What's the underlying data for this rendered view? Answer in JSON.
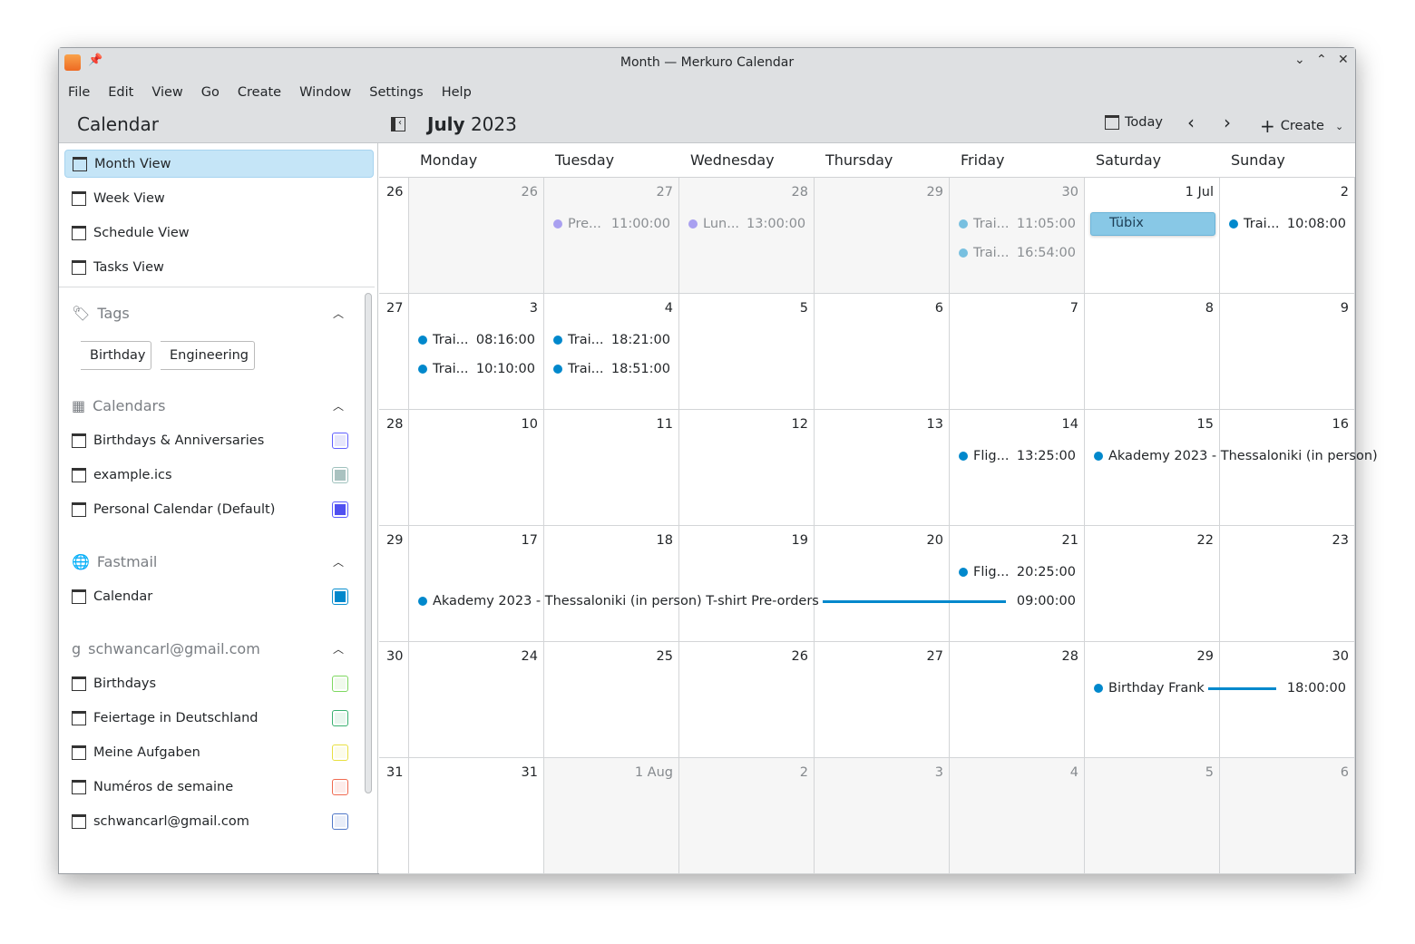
{
  "window": {
    "title": "Month — Merkuro Calendar"
  },
  "menu": [
    "File",
    "Edit",
    "View",
    "Go",
    "Create",
    "Window",
    "Settings",
    "Help"
  ],
  "header": {
    "sidebar_title": "Calendar",
    "month": "July",
    "year": "2023",
    "today": "Today",
    "create": "Create"
  },
  "nav": [
    {
      "label": "Month View",
      "selected": true
    },
    {
      "label": "Week View"
    },
    {
      "label": "Schedule View"
    },
    {
      "label": "Tasks View"
    }
  ],
  "tags": {
    "title": "Tags",
    "items": [
      "Birthday",
      "Engineering"
    ]
  },
  "sources": [
    {
      "title": "Calendars",
      "icon": "calendar-icon",
      "items": [
        {
          "label": "Birthdays & Anniversaries",
          "color": "#6060ff",
          "fill": "#e6e6fb",
          "icon": "cake-icon"
        },
        {
          "label": "example.ics",
          "color": "#9fc1bd",
          "fill": "#a9c2c0",
          "icon": "calendar-file-icon"
        },
        {
          "label": "Personal Calendar (Default)",
          "color": "#5a5aff",
          "fill": "#5050f0",
          "icon": "calendar-file-icon"
        }
      ]
    },
    {
      "title": "Fastmail",
      "icon": "globe-icon",
      "items": [
        {
          "label": "Calendar",
          "color": "#0a8fd0",
          "fill": "#0088cc",
          "icon": "folder-icon"
        }
      ]
    },
    {
      "title": "schwancarl@gmail.com",
      "icon": "google-icon",
      "items": [
        {
          "label": "Birthdays",
          "color": "#7ed860",
          "fill": "#f0f9ec",
          "icon": "calendar-icon"
        },
        {
          "label": "Feiertage in Deutschland",
          "color": "#38b070",
          "fill": "#e8f6ee",
          "icon": "calendar-icon"
        },
        {
          "label": "Meine Aufgaben",
          "color": "#e8e040",
          "fill": "#fcfcea",
          "icon": "task-icon"
        },
        {
          "label": "Numéros de semaine",
          "color": "#f06a50",
          "fill": "#fdecea",
          "icon": "calendar-icon"
        },
        {
          "label": "schwancarl@gmail.com",
          "color": "#5078c8",
          "fill": "#e8edf8",
          "icon": "calendar-icon"
        }
      ]
    }
  ],
  "weekdays": [
    "Monday",
    "Tuesday",
    "Wednesday",
    "Thursday",
    "Friday",
    "Saturday",
    "Sunday"
  ],
  "colors": {
    "event": "#0088cc",
    "event_past": "#78c0e0",
    "personal_past": "#a9a0f0"
  },
  "weeks": [
    {
      "num": "26",
      "days": [
        {
          "d": "26",
          "o": true
        },
        {
          "d": "27",
          "o": true
        },
        {
          "d": "28",
          "o": true
        },
        {
          "d": "29",
          "o": true
        },
        {
          "d": "30",
          "o": true
        },
        {
          "d": "1 Jul"
        },
        {
          "d": "2"
        }
      ],
      "events": [
        {
          "col": 1,
          "slot": 0,
          "title": "Pre...",
          "time": "11:00:00",
          "color": "#a9a0f0",
          "past": true
        },
        {
          "col": 2,
          "slot": 0,
          "title": "Lun...",
          "time": "13:00:00",
          "color": "#a9a0f0",
          "past": true
        },
        {
          "col": 4,
          "slot": 0,
          "title": "Trai...",
          "time": "11:05:00",
          "color": "#78c0e0",
          "past": true
        },
        {
          "col": 4,
          "slot": 1,
          "title": "Trai...",
          "time": "16:54:00",
          "color": "#78c0e0",
          "past": true
        },
        {
          "col": 5,
          "slot": 0,
          "title": "Tübix",
          "block": true
        },
        {
          "col": 6,
          "slot": 0,
          "title": "Trai...",
          "time": "10:08:00",
          "color": "#0088cc"
        }
      ]
    },
    {
      "num": "27",
      "days": [
        {
          "d": "3"
        },
        {
          "d": "4"
        },
        {
          "d": "5"
        },
        {
          "d": "6"
        },
        {
          "d": "7"
        },
        {
          "d": "8"
        },
        {
          "d": "9"
        }
      ],
      "events": [
        {
          "col": 0,
          "slot": 0,
          "title": "Trai...",
          "time": "08:16:00",
          "color": "#0088cc"
        },
        {
          "col": 0,
          "slot": 1,
          "title": "Trai...",
          "time": "10:10:00",
          "color": "#0088cc"
        },
        {
          "col": 1,
          "slot": 0,
          "title": "Trai...",
          "time": "18:21:00",
          "color": "#0088cc"
        },
        {
          "col": 1,
          "slot": 1,
          "title": "Trai...",
          "time": "18:51:00",
          "color": "#0088cc"
        }
      ]
    },
    {
      "num": "28",
      "days": [
        {
          "d": "10"
        },
        {
          "d": "11"
        },
        {
          "d": "12"
        },
        {
          "d": "13"
        },
        {
          "d": "14"
        },
        {
          "d": "15"
        },
        {
          "d": "16"
        }
      ],
      "events": [
        {
          "col": 4,
          "slot": 0,
          "title": "Flig...",
          "time": "13:25:00",
          "color": "#0088cc"
        },
        {
          "col": 5,
          "span": 2,
          "slot": 0,
          "title": "Akademy 2023 - Thessaloniki (in person)",
          "color": "#0088cc",
          "clip": true
        }
      ]
    },
    {
      "num": "29",
      "days": [
        {
          "d": "17"
        },
        {
          "d": "18"
        },
        {
          "d": "19"
        },
        {
          "d": "20"
        },
        {
          "d": "21"
        },
        {
          "d": "22"
        },
        {
          "d": "23"
        }
      ],
      "events": [
        {
          "col": 4,
          "slot": 0,
          "title": "Flig...",
          "time": "20:25:00",
          "color": "#0088cc"
        },
        {
          "col": 0,
          "span": 5,
          "slot": 1,
          "title": "Akademy 2023 - Thessaloniki (in person) T-shirt Pre-orders",
          "time": "09:00:00",
          "color": "#0088cc",
          "line": true
        }
      ]
    },
    {
      "num": "30",
      "days": [
        {
          "d": "24"
        },
        {
          "d": "25"
        },
        {
          "d": "26"
        },
        {
          "d": "27"
        },
        {
          "d": "28"
        },
        {
          "d": "29"
        },
        {
          "d": "30"
        }
      ],
      "events": [
        {
          "col": 5,
          "span": 2,
          "slot": 0,
          "title": "Birthday Frank",
          "time": "18:00:00",
          "color": "#0088cc",
          "line": true
        }
      ]
    },
    {
      "num": "31",
      "days": [
        {
          "d": "31"
        },
        {
          "d": "1 Aug",
          "o": true
        },
        {
          "d": "2",
          "o": true
        },
        {
          "d": "3",
          "o": true
        },
        {
          "d": "4",
          "o": true
        },
        {
          "d": "5",
          "o": true
        },
        {
          "d": "6",
          "o": true
        }
      ],
      "events": []
    }
  ]
}
